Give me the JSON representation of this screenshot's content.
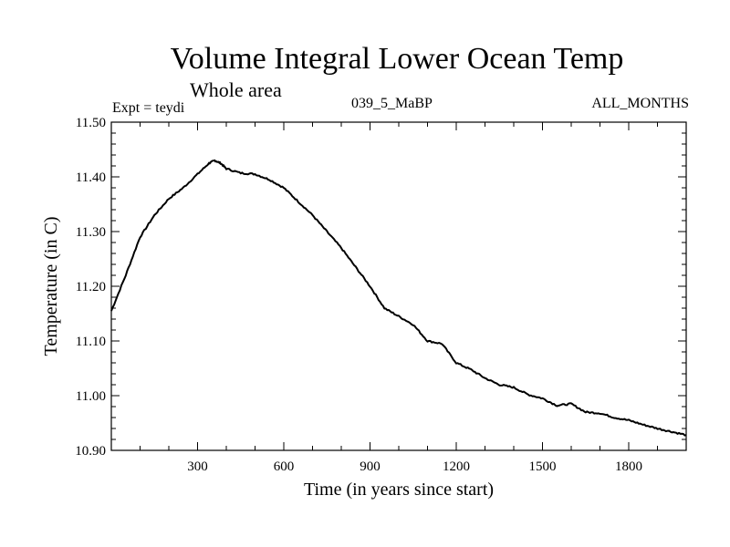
{
  "header": {
    "title": "Volume Integral Lower Ocean Temp",
    "subtitle": "Whole area",
    "experiment": "Expt = teydi",
    "run": "039_5_MaBP",
    "months": "ALL_MONTHS"
  },
  "chart_data": {
    "type": "line",
    "title": "Volume Integral Lower Ocean Temp",
    "subtitle": "Whole area",
    "xlabel": "Time (in years since start)",
    "ylabel": "Temperature (in C)",
    "xlim": [
      0,
      2000
    ],
    "ylim": [
      10.9,
      11.5
    ],
    "xticks": [
      300,
      600,
      900,
      1200,
      1500,
      1800
    ],
    "xtick_labels": [
      "300",
      "600",
      "900",
      "1200",
      "1500",
      "1800"
    ],
    "yticks": [
      10.9,
      11.0,
      11.1,
      11.2,
      11.3,
      11.4,
      11.5
    ],
    "ytick_labels": [
      "10.90",
      "11.00",
      "11.10",
      "11.20",
      "11.30",
      "11.40",
      "11.50"
    ],
    "grid": false,
    "series": [
      {
        "name": "teydi",
        "x": [
          0,
          50,
          100,
          150,
          200,
          250,
          300,
          340,
          360,
          380,
          400,
          450,
          500,
          550,
          600,
          650,
          700,
          750,
          800,
          850,
          900,
          950,
          1000,
          1050,
          1100,
          1150,
          1200,
          1250,
          1300,
          1350,
          1400,
          1450,
          1500,
          1550,
          1600,
          1650,
          1700,
          1750,
          1800,
          1850,
          1900,
          1950,
          2000
        ],
        "values": [
          11.155,
          11.22,
          11.29,
          11.33,
          11.36,
          11.38,
          11.405,
          11.425,
          11.43,
          11.425,
          11.415,
          11.407,
          11.405,
          11.395,
          11.38,
          11.355,
          11.33,
          11.3,
          11.27,
          11.235,
          11.2,
          11.16,
          11.145,
          11.13,
          11.1,
          11.095,
          11.06,
          11.048,
          11.032,
          11.02,
          11.015,
          11.002,
          10.995,
          10.982,
          10.985,
          10.97,
          10.968,
          10.96,
          10.955,
          10.947,
          10.94,
          10.934,
          10.928
        ]
      }
    ]
  }
}
